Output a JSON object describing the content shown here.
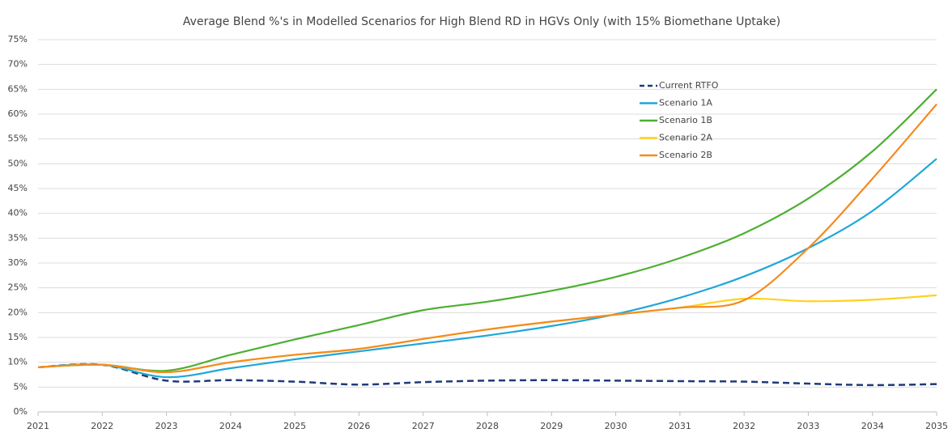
{
  "chart_data": {
    "type": "line",
    "title": "Average Blend %'s in Modelled Scenarios for High Blend RD in HGVs Only (with 15% Biomethane Uptake)",
    "x": [
      2021,
      2022,
      2023,
      2024,
      2025,
      2026,
      2027,
      2028,
      2029,
      2030,
      2031,
      2032,
      2033,
      2034,
      2035
    ],
    "series": [
      {
        "name": "Current RTFO",
        "color": "#1f3a7a",
        "dashed": true,
        "values": [
          9,
          9.5,
          6.3,
          6.4,
          6.1,
          5.5,
          6,
          6.3,
          6.4,
          6.3,
          6.2,
          6.1,
          5.7,
          5.4,
          5.6
        ]
      },
      {
        "name": "Scenario 1A",
        "color": "#1ea7d8",
        "values": [
          9,
          9.5,
          7,
          8.8,
          10.6,
          12.2,
          13.8,
          15.4,
          17.3,
          19.7,
          23,
          27.3,
          33,
          40.5,
          51
        ]
      },
      {
        "name": "Scenario 1B",
        "color": "#4caf32",
        "values": [
          9,
          9.5,
          8.3,
          11.5,
          14.6,
          17.5,
          20.5,
          22.2,
          24.4,
          27.2,
          31,
          36,
          43,
          52.5,
          65
        ]
      },
      {
        "name": "Scenario 2A",
        "color": "#ffd21f",
        "values": [
          9,
          9.5,
          8,
          10,
          11.5,
          12.7,
          14.7,
          16.6,
          18.2,
          19.6,
          21,
          22.8,
          22.3,
          22.6,
          23.5
        ]
      },
      {
        "name": "Scenario 2B",
        "color": "#f58a1f",
        "values": [
          9,
          9.5,
          8,
          10,
          11.5,
          12.7,
          14.7,
          16.6,
          18.2,
          19.6,
          21,
          22.5,
          33,
          47,
          62
        ]
      }
    ],
    "xlim": [
      2021,
      2035
    ],
    "xticks": [
      2021,
      2022,
      2023,
      2024,
      2025,
      2026,
      2027,
      2028,
      2029,
      2030,
      2031,
      2032,
      2033,
      2034,
      2035
    ],
    "ylim": [
      0,
      75
    ],
    "yticks": [
      {
        "value": 0,
        "label": "0%"
      },
      {
        "value": 5,
        "label": "5%"
      },
      {
        "value": 10,
        "label": "10%"
      },
      {
        "value": 15,
        "label": "15%"
      },
      {
        "value": 20,
        "label": "20%"
      },
      {
        "value": 25,
        "label": "25%"
      },
      {
        "value": 30,
        "label": "30%"
      },
      {
        "value": 35,
        "label": "35%"
      },
      {
        "value": 40,
        "label": "40%"
      },
      {
        "value": 45,
        "label": "45%"
      },
      {
        "value": 50,
        "label": "50%"
      },
      {
        "value": 55,
        "label": "55%"
      },
      {
        "value": 60,
        "label": "60%"
      },
      {
        "value": 65,
        "label": "65%"
      },
      {
        "value": 70,
        "label": "70%"
      },
      {
        "value": 75,
        "label": "75%"
      }
    ],
    "grid": true
  }
}
